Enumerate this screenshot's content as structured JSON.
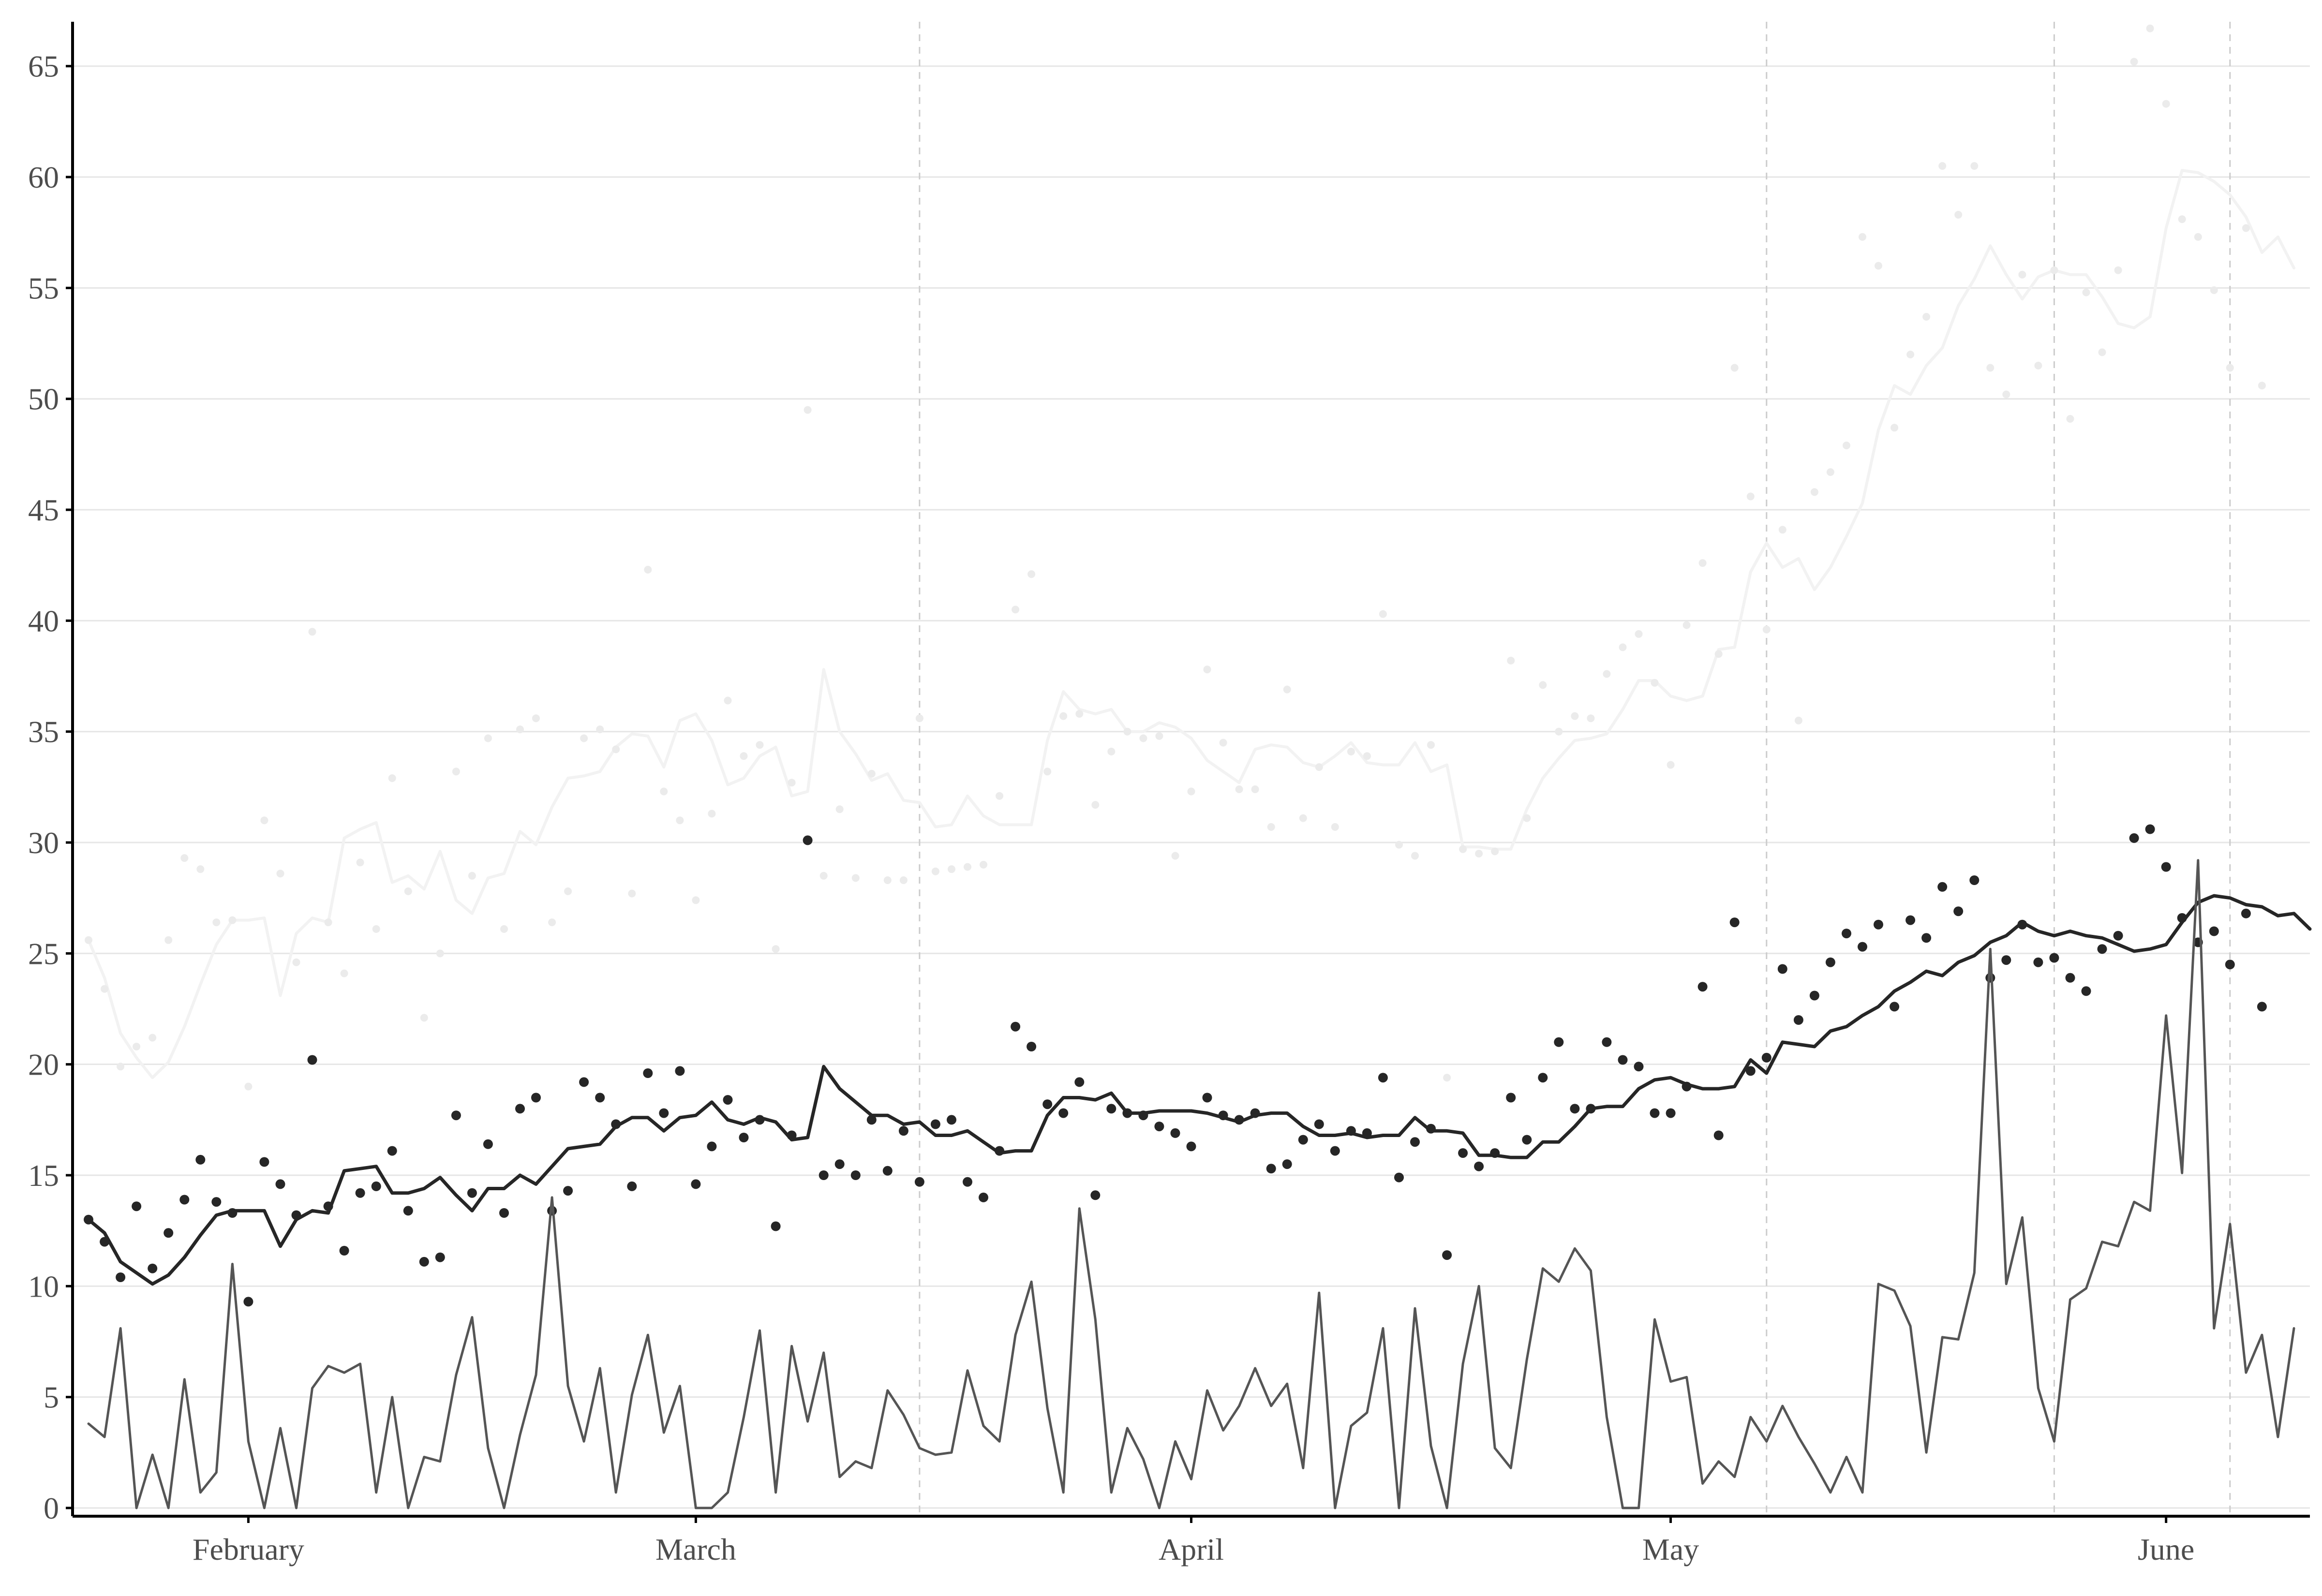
{
  "chart_data": {
    "type": "line",
    "title": "",
    "xlabel": "",
    "ylabel": "",
    "x_start": "2021-01-22",
    "x_end": "2021-06-06",
    "xlim": [
      "2021-01-21",
      "2021-06-10"
    ],
    "ylim": [
      0,
      67
    ],
    "y_ticks": [
      0,
      5,
      10,
      15,
      20,
      25,
      30,
      35,
      40,
      45,
      50,
      55,
      60,
      65
    ],
    "x_ticks": [
      {
        "label": "February",
        "date": "2021-02-01"
      },
      {
        "label": "March",
        "date": "2021-03-01"
      },
      {
        "label": "April",
        "date": "2021-04-01"
      },
      {
        "label": "May",
        "date": "2021-05-01"
      },
      {
        "label": "June",
        "date": "2021-06-01"
      }
    ],
    "reference_dates": [
      "2021-03-15",
      "2021-05-07",
      "2021-05-25",
      "2021-06-05"
    ],
    "grid": "horizontal",
    "legend": "none",
    "colors": {
      "main_line": "#262626",
      "main_points": "#262626",
      "secondary_line": "#555555",
      "faint_line": "#f2f2f2",
      "faint_points": "#ebebeb",
      "reference_lines": "#cccccc"
    },
    "series": [
      {
        "style": "points",
        "values": [
          13,
          12,
          10.4,
          13.6,
          10.8,
          12.4,
          13.9,
          15.7,
          13.8,
          13.3,
          9.3,
          15.6,
          14.6,
          13.2,
          20.2,
          13.6,
          11.6,
          14.2,
          14.5,
          16.1,
          13.4,
          11.1,
          11.3,
          17.7,
          14.2,
          16.4,
          13.3,
          18,
          18.5,
          13.4,
          14.3,
          19.2,
          18.5,
          17.3,
          14.5,
          19.6,
          17.8,
          19.7,
          14.6,
          16.3,
          18.4,
          16.7,
          17.5,
          12.7,
          16.8,
          30.1,
          15,
          15.5,
          15,
          17.5,
          15.2,
          17,
          14.7,
          17.3,
          17.5,
          14.7,
          14,
          16.1,
          21.7,
          20.8,
          18.2,
          17.8,
          19.2,
          14.1,
          18,
          17.8,
          17.7,
          17.2,
          16.9,
          16.3,
          18.5,
          17.7,
          17.5,
          17.8,
          15.3,
          15.5,
          16.6,
          17.3,
          16.1,
          17,
          16.9,
          19.4,
          14.9,
          16.5,
          17.1,
          11.4,
          16,
          15.4,
          16,
          18.5,
          16.6,
          19.4,
          21,
          18,
          18,
          21,
          20.2,
          19.9,
          17.8,
          17.8,
          19,
          23.5,
          16.8,
          26.4,
          19.7,
          20.3,
          24.3,
          22,
          23.1,
          24.6,
          25.9,
          25.3,
          26.3,
          22.6,
          26.5,
          25.7,
          28,
          26.9,
          28.3,
          23.9,
          24.7,
          26.3,
          24.6,
          24.8,
          23.9,
          23.3,
          25.2,
          25.8,
          30.2,
          30.6,
          28.9,
          26.6,
          25.5,
          26,
          24.5,
          26.8,
          22.6
        ]
      },
      {
        "style": "line",
        "values": [
          13,
          12.4,
          11.1,
          10.6,
          10.1,
          10.5,
          11.3,
          12.3,
          13.2,
          13.4,
          13.4,
          13.4,
          11.8,
          13,
          13.4,
          13.3,
          15.2,
          15.3,
          15.4,
          14.2,
          14.2,
          14.4,
          14.9,
          14.1,
          13.4,
          14.4,
          14.4,
          15,
          14.6,
          15.4,
          16.2,
          16.3,
          16.4,
          17.2,
          17.6,
          17.6,
          17,
          17.6,
          17.7,
          18.3,
          17.5,
          17.3,
          17.6,
          17.4,
          16.6,
          16.7,
          19.9,
          18.9,
          18.3,
          17.7,
          17.7,
          17.3,
          17.4,
          16.8,
          16.8,
          17,
          16.5,
          16,
          16.1,
          16.1,
          17.7,
          18.5,
          18.5,
          18.4,
          18.7,
          17.8,
          17.8,
          17.9,
          17.9,
          17.9,
          17.8,
          17.6,
          17.4,
          17.7,
          17.8,
          17.8,
          17.2,
          16.8,
          16.8,
          16.9,
          16.7,
          16.8,
          16.8,
          17.6,
          17,
          17,
          16.9,
          15.9,
          15.9,
          15.8,
          15.8,
          16.5,
          16.5,
          17.2,
          18,
          18.1,
          18.1,
          18.9,
          19.3,
          19.4,
          19.1,
          18.9,
          18.9,
          19,
          20.2,
          19.6,
          21,
          20.9,
          20.8,
          21.5,
          21.7,
          22.2,
          22.6,
          23.3,
          23.7,
          24.2,
          24,
          24.6,
          24.9,
          25.5,
          25.8,
          26.4,
          26,
          25.8,
          26,
          25.8,
          25.7,
          25.4,
          25.1,
          25.2,
          25.4,
          26.4,
          27.3,
          27.6,
          27.5,
          27.2,
          27.1,
          26.7,
          26.8,
          26.1
        ]
      },
      {
        "style": "line",
        "values": [
          3.8,
          3.2,
          8.1,
          0,
          2.4,
          0,
          5.8,
          0.7,
          1.6,
          11,
          3,
          0,
          3.6,
          0,
          5.4,
          6.4,
          6.1,
          6.5,
          0.7,
          5,
          0,
          2.3,
          2.1,
          6,
          8.6,
          2.7,
          0,
          3.3,
          6,
          14,
          5.5,
          3,
          6.3,
          0.7,
          5.1,
          7.8,
          3.4,
          5.5,
          0,
          0,
          0.7,
          4.1,
          8,
          0.7,
          7.3,
          3.9,
          7,
          1.4,
          2.1,
          1.8,
          5.3,
          4.2,
          2.7,
          2.4,
          2.5,
          6.2,
          3.7,
          3,
          7.8,
          10.2,
          4.5,
          0.7,
          13.5,
          8.5,
          0.7,
          3.6,
          2.2,
          0,
          3,
          1.3,
          5.3,
          3.5,
          4.6,
          6.3,
          4.6,
          5.6,
          1.8,
          9.7,
          0,
          3.7,
          4.3,
          8.1,
          0,
          9,
          2.8,
          0,
          6.5,
          10,
          2.7,
          1.8,
          6.7,
          10.8,
          10.2,
          11.7,
          10.7,
          4.1,
          0,
          0,
          8.5,
          5.7,
          5.9,
          1.1,
          2.1,
          1.4,
          4.1,
          3,
          4.6,
          3.2,
          2,
          0.7,
          2.3,
          0.7,
          10.1,
          9.8,
          8.2,
          2.5,
          7.7,
          7.6,
          10.6,
          25.2,
          10.1,
          13.1,
          5.4,
          3,
          9.4,
          9.9,
          12,
          11.8,
          13.8,
          13.4,
          22.2,
          15.1,
          29.2,
          8.1,
          12.8,
          6.1,
          7.8,
          3.2,
          8.1
        ]
      },
      {
        "style": "line-faint",
        "values": [
          25.6,
          23.9,
          21.4,
          20.3,
          19.4,
          20.1,
          21.7,
          23.6,
          25.4,
          26.5,
          26.5,
          26.6,
          23.1,
          25.9,
          26.6,
          26.4,
          30.2,
          30.6,
          30.9,
          28.2,
          28.5,
          27.9,
          29.6,
          27.4,
          26.8,
          28.4,
          28.6,
          30.5,
          29.9,
          31.6,
          32.9,
          33,
          33.2,
          34.3,
          34.9,
          34.8,
          33.4,
          35.5,
          35.8,
          34.6,
          32.6,
          32.9,
          33.9,
          34.3,
          32.1,
          32.3,
          37.8,
          35,
          34,
          32.8,
          33.1,
          31.9,
          31.8,
          30.7,
          30.8,
          32.1,
          31.2,
          30.8,
          30.8,
          30.8,
          34.6,
          36.8,
          36,
          35.8,
          36,
          35,
          35,
          35.4,
          35.2,
          34.7,
          33.7,
          33.2,
          32.7,
          34.2,
          34.4,
          34.3,
          33.6,
          33.4,
          33.9,
          34.5,
          33.6,
          33.5,
          33.5,
          34.5,
          33.2,
          33.5,
          29.8,
          29.8,
          29.7,
          29.7,
          31.5,
          32.9,
          33.8,
          34.6,
          34.7,
          34.9,
          36,
          37.3,
          37.3,
          36.6,
          36.4,
          36.6,
          38.7,
          38.8,
          42.2,
          43.5,
          42.4,
          42.8,
          41.4,
          42.4,
          43.8,
          45.3,
          48.6,
          50.6,
          50.2,
          51.5,
          52.3,
          54.2,
          55.4,
          56.9,
          55.6,
          54.5,
          55.5,
          55.8,
          55.6,
          55.6,
          54.6,
          53.4,
          53.2,
          53.7,
          57.7,
          60.3,
          60.2,
          59.8,
          59.2,
          58.2,
          56.6,
          57.3,
          55.9
        ]
      },
      {
        "style": "points-faint",
        "values": [
          25.6,
          23.4,
          19.9,
          20.8,
          21.2,
          25.6,
          29.3,
          28.8,
          26.4,
          26.5,
          19,
          31,
          28.6,
          24.6,
          39.5,
          26.4,
          24.1,
          29.1,
          26.1,
          32.9,
          27.8,
          22.1,
          25,
          33.2,
          28.5,
          34.7,
          26.1,
          35.1,
          35.6,
          26.4,
          27.8,
          34.7,
          35.1,
          34.2,
          27.7,
          42.3,
          32.3,
          31,
          27.4,
          31.3,
          36.4,
          33.9,
          34.4,
          25.2,
          32.7,
          49.5,
          28.5,
          31.5,
          28.4,
          33.1,
          28.3,
          28.3,
          35.6,
          28.7,
          28.8,
          28.9,
          29,
          32.1,
          40.5,
          42.1,
          33.2,
          35.7,
          35.8,
          31.7,
          34.1,
          35,
          34.7,
          34.8,
          29.4,
          32.3,
          37.8,
          34.5,
          32.4,
          32.4,
          30.7,
          36.9,
          31.1,
          33.4,
          30.7,
          34.1,
          33.9,
          40.3,
          29.9,
          29.4,
          34.4,
          19.4,
          29.7,
          29.5,
          29.6,
          38.2,
          31.1,
          37.1,
          35,
          35.7,
          35.6,
          37.6,
          38.8,
          39.4,
          37.2,
          33.5,
          39.8,
          42.6,
          38.5,
          51.4,
          45.6,
          39.6,
          44.1,
          35.5,
          45.8,
          46.7,
          47.9,
          57.3,
          56,
          48.7,
          52,
          53.7,
          60.5,
          58.3,
          60.5,
          51.4,
          50.2,
          55.6,
          51.5,
          55.8,
          49.1,
          54.8,
          52.1,
          55.8,
          65.2,
          66.7,
          63.3,
          58.1,
          57.3,
          54.9,
          51.4,
          57.7,
          50.6
        ]
      }
    ]
  }
}
